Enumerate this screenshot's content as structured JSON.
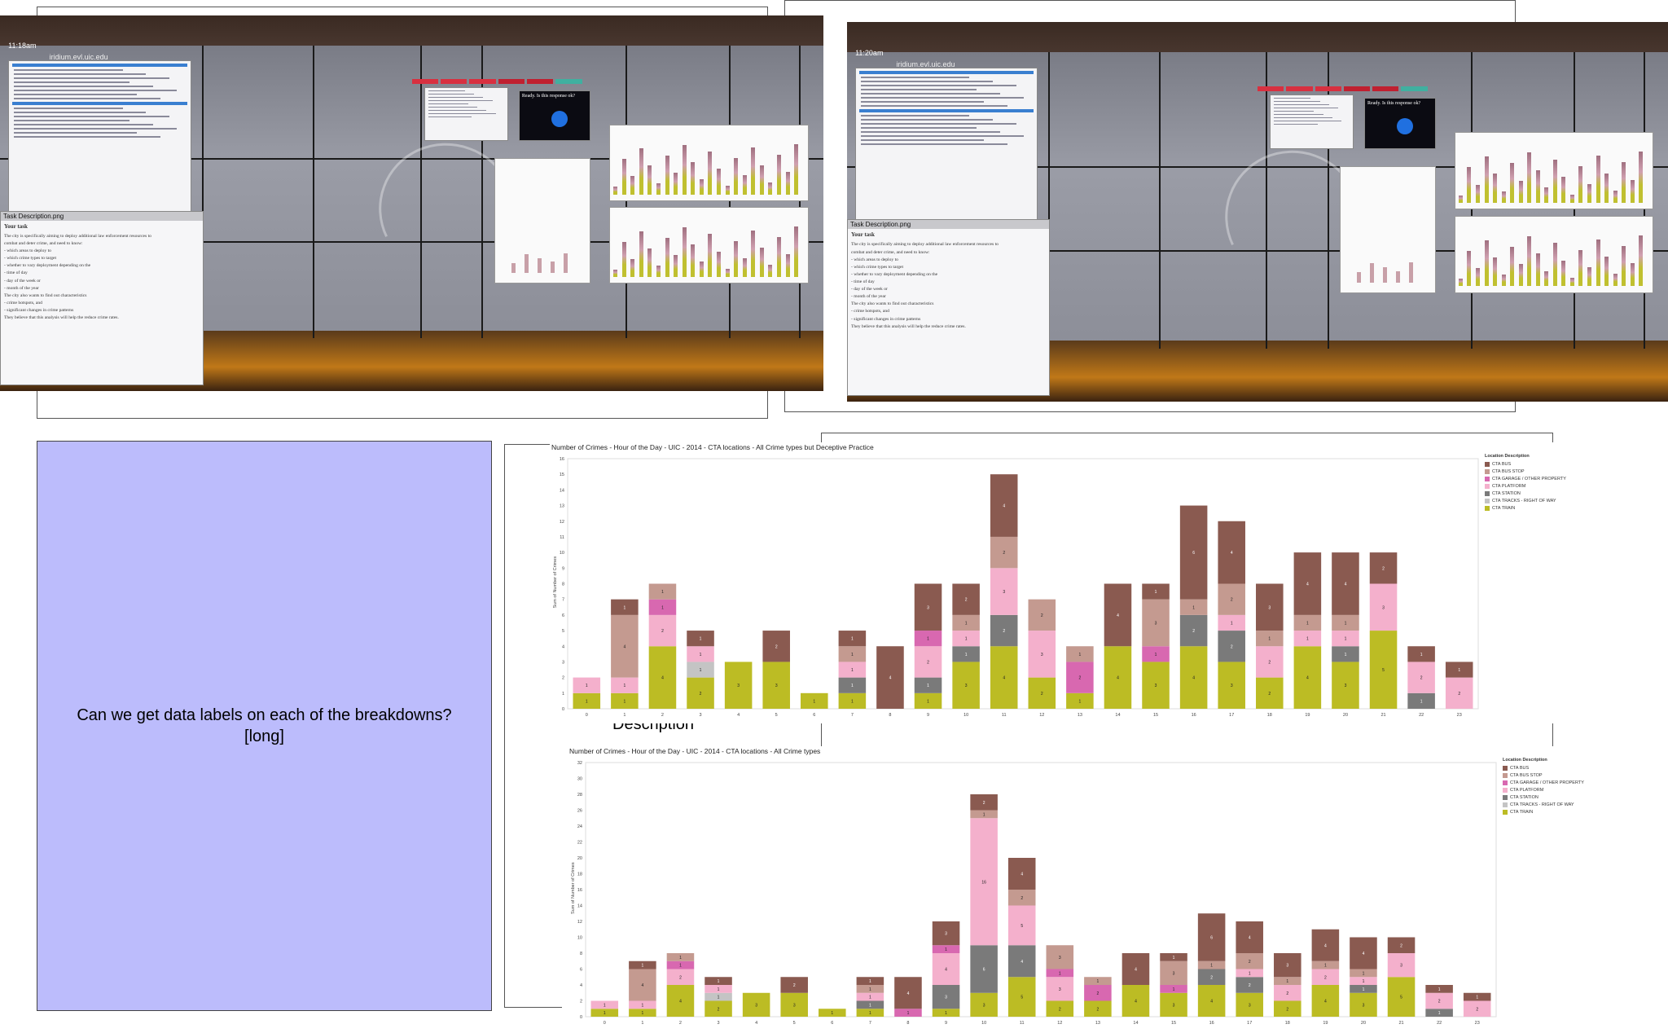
{
  "photos": {
    "left": {
      "time": "11:18am",
      "host": "iridium.evl.uic.edu",
      "dialog_text": "Ready. Is this response ok?",
      "task_window_title": "Task Description.png",
      "task_heading": "Your task",
      "task_lines": [
        "The city is specifically aiming to deploy additional law enforcement resources to",
        "combat and deter crime, and need to know:",
        "- which areas to deploy to",
        "- which crime types to target",
        "- whether to vary deployment depending on the",
        "- time of day",
        "- day of the week or",
        "- month of the year",
        "The city also wants to find out characteristics",
        "- crime hotspots, and",
        "- significant changes in crime patterns",
        "They believe that this analysis will help the reduce crime rates."
      ]
    },
    "right": {
      "time": "11:20am",
      "host": "iridium.evl.uic.edu",
      "dialog_text": "Ready. Is this response ok?",
      "task_window_title": "Task Description.png",
      "task_heading": "Your task",
      "task_lines": [
        "The city is specifically aiming to deploy additional law enforcement resources to",
        "combat and deter crime, and need to know:",
        "- which areas to deploy to",
        "- which crime types to target",
        "- whether to vary deployment depending on the",
        "- time of day",
        "- day of the week or",
        "- month of the year",
        "The city also wants to find out characteristics",
        "- crime hotspots, and",
        "- significant changes in crime patterns",
        "They believe that this analysis will help the reduce crime rates."
      ]
    }
  },
  "question": {
    "line1": "Can we get data labels on each of the breakdowns?",
    "line2": "[long]"
  },
  "overlap_text": "Description",
  "colors": {
    "CTA BUS": "#8a5a50",
    "CTA BUS STOP": "#c49a90",
    "CTA GARAGE / OTHER PROPERTY": "#d868b0",
    "CTA PLATFORM": "#f4b0cc",
    "CTA STATION": "#7a7a7a",
    "CTA TRACKS - RIGHT OF WAY": "#c4c4c4",
    "CTA TRAIN": "#bcbc24"
  },
  "chart_data": [
    {
      "type": "bar",
      "stacked": true,
      "title": "Number of Crimes - Hour of the Day - UIC - 2014 - CTA locations - All Crime types but Deceptive Practice",
      "ylabel": "Sum of Number of Crimes",
      "ylim": [
        0,
        16
      ],
      "yticks": [
        0,
        1,
        2,
        3,
        4,
        5,
        6,
        7,
        8,
        9,
        10,
        11,
        12,
        13,
        14,
        15,
        16
      ],
      "legend_title": "Location Description",
      "legend_position": "right",
      "categories": [
        "0",
        "1",
        "2",
        "3",
        "4",
        "5",
        "6",
        "7",
        "8",
        "9",
        "10",
        "11",
        "12",
        "13",
        "14",
        "15",
        "16",
        "17",
        "18",
        "19",
        "20",
        "21",
        "22",
        "23"
      ],
      "series": [
        {
          "name": "CTA TRAIN",
          "values": [
            1,
            1,
            4,
            2,
            3,
            3,
            1,
            1,
            0,
            1,
            3,
            4,
            2,
            1,
            4,
            3,
            4,
            3,
            2,
            4,
            3,
            5,
            0,
            0
          ]
        },
        {
          "name": "CTA TRACKS - RIGHT OF WAY",
          "values": [
            0,
            0,
            0,
            1,
            0,
            0,
            0,
            0,
            0,
            0,
            0,
            0,
            0,
            0,
            0,
            0,
            0,
            0,
            0,
            0,
            0,
            0,
            0,
            0
          ]
        },
        {
          "name": "CTA STATION",
          "values": [
            0,
            0,
            0,
            0,
            0,
            0,
            0,
            1,
            0,
            1,
            1,
            2,
            0,
            0,
            0,
            0,
            2,
            2,
            0,
            0,
            1,
            0,
            1,
            0
          ]
        },
        {
          "name": "CTA PLATFORM",
          "values": [
            1,
            1,
            2,
            1,
            0,
            0,
            0,
            1,
            0,
            2,
            1,
            3,
            3,
            0,
            0,
            0,
            0,
            1,
            2,
            1,
            1,
            3,
            2,
            2
          ]
        },
        {
          "name": "CTA GARAGE / OTHER PROPERTY",
          "values": [
            0,
            0,
            1,
            0,
            0,
            0,
            0,
            0,
            0,
            1,
            0,
            0,
            0,
            2,
            0,
            1,
            0,
            0,
            0,
            0,
            0,
            0,
            0,
            0
          ]
        },
        {
          "name": "CTA BUS STOP",
          "values": [
            0,
            4,
            1,
            0,
            0,
            0,
            0,
            1,
            0,
            0,
            1,
            2,
            2,
            1,
            0,
            3,
            1,
            2,
            1,
            1,
            1,
            0,
            0,
            0
          ]
        },
        {
          "name": "CTA BUS",
          "values": [
            0,
            1,
            0,
            1,
            0,
            2,
            0,
            1,
            4,
            3,
            2,
            4,
            0,
            0,
            4,
            1,
            6,
            4,
            3,
            4,
            4,
            2,
            1,
            1
          ]
        }
      ]
    },
    {
      "type": "bar",
      "stacked": true,
      "title": "Number of Crimes - Hour of the Day - UIC - 2014 - CTA locations - All Crime types",
      "ylabel": "Sum of Number of Crimes",
      "ylim": [
        0,
        32
      ],
      "yticks": [
        0,
        2,
        4,
        6,
        8,
        10,
        12,
        14,
        16,
        18,
        20,
        22,
        24,
        26,
        28,
        30,
        32
      ],
      "legend_title": "Location Description",
      "legend_position": "right",
      "categories": [
        "0",
        "1",
        "2",
        "3",
        "4",
        "5",
        "6",
        "7",
        "8",
        "9",
        "10",
        "11",
        "12",
        "13",
        "14",
        "15",
        "16",
        "17",
        "18",
        "19",
        "20",
        "21",
        "22",
        "23"
      ],
      "series": [
        {
          "name": "CTA TRAIN",
          "values": [
            1,
            1,
            4,
            2,
            3,
            3,
            1,
            1,
            0,
            1,
            3,
            5,
            2,
            2,
            4,
            3,
            4,
            3,
            2,
            4,
            3,
            5,
            0,
            0
          ]
        },
        {
          "name": "CTA TRACKS - RIGHT OF WAY",
          "values": [
            0,
            0,
            0,
            1,
            0,
            0,
            0,
            0,
            0,
            0,
            0,
            0,
            0,
            0,
            0,
            0,
            0,
            0,
            0,
            0,
            0,
            0,
            0,
            0
          ]
        },
        {
          "name": "CTA STATION",
          "values": [
            0,
            0,
            0,
            0,
            0,
            0,
            0,
            1,
            0,
            3,
            6,
            4,
            0,
            0,
            0,
            0,
            2,
            2,
            0,
            0,
            1,
            0,
            1,
            0
          ]
        },
        {
          "name": "CTA PLATFORM",
          "values": [
            1,
            1,
            2,
            1,
            0,
            0,
            0,
            1,
            0,
            4,
            16,
            5,
            3,
            0,
            0,
            0,
            0,
            1,
            2,
            2,
            1,
            3,
            2,
            2
          ]
        },
        {
          "name": "CTA GARAGE / OTHER PROPERTY",
          "values": [
            0,
            0,
            1,
            0,
            0,
            0,
            0,
            0,
            1,
            1,
            0,
            0,
            1,
            2,
            0,
            1,
            0,
            0,
            0,
            0,
            0,
            0,
            0,
            0
          ]
        },
        {
          "name": "CTA BUS STOP",
          "values": [
            0,
            4,
            1,
            0,
            0,
            0,
            0,
            1,
            0,
            0,
            1,
            2,
            3,
            1,
            0,
            3,
            1,
            2,
            1,
            1,
            1,
            0,
            0,
            0
          ]
        },
        {
          "name": "CTA BUS",
          "values": [
            0,
            1,
            0,
            1,
            0,
            2,
            0,
            1,
            4,
            3,
            2,
            4,
            0,
            0,
            4,
            1,
            6,
            4,
            3,
            4,
            4,
            2,
            1,
            1
          ]
        }
      ]
    }
  ]
}
